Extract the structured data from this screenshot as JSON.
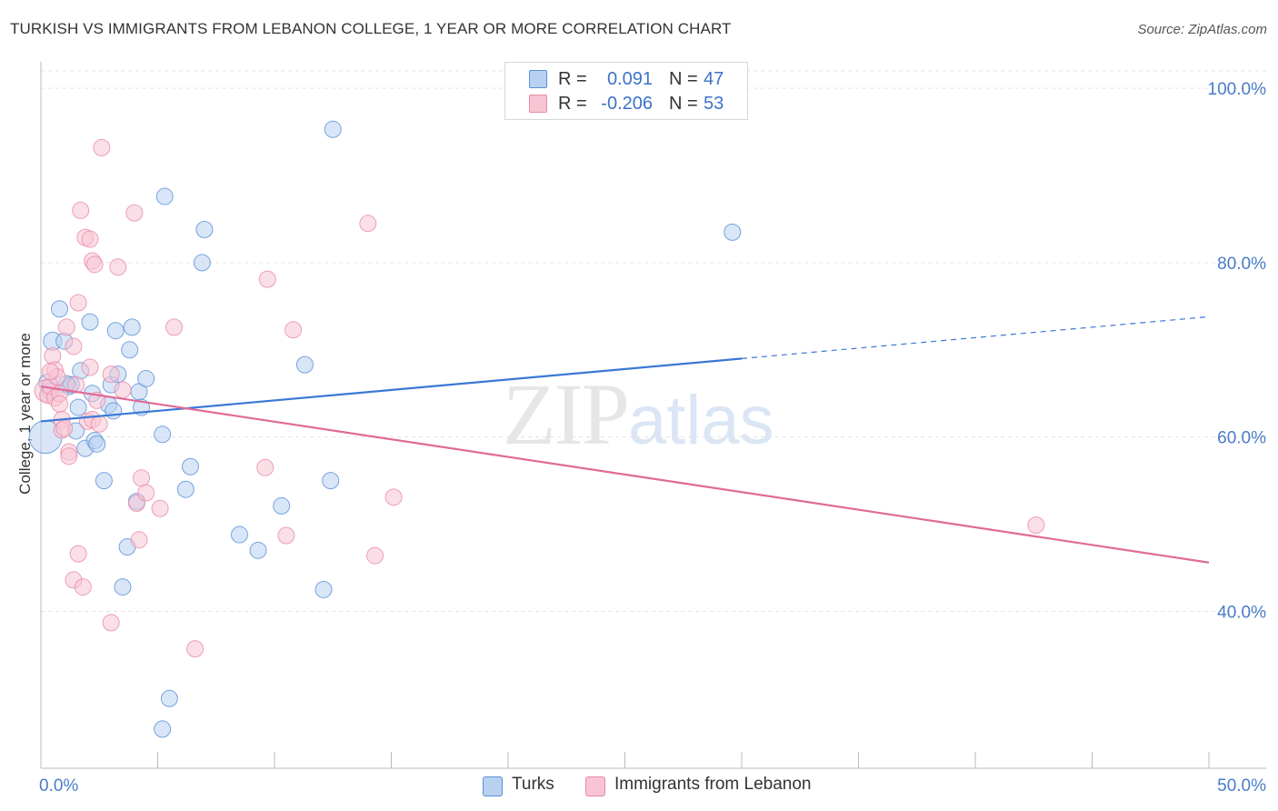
{
  "title": "TURKISH VS IMMIGRANTS FROM LEBANON COLLEGE, 1 YEAR OR MORE CORRELATION CHART",
  "source": "Source: ZipAtlas.com",
  "watermark": {
    "zip": "ZIP",
    "atlas": "atlas"
  },
  "colors": {
    "turks_fill": "#b8d1f0",
    "turks_stroke": "#5a8fd8",
    "turks_line": "#3b78d6",
    "lebanon_fill": "#f8c4d4",
    "lebanon_stroke": "#e88aa8",
    "lebanon_line": "#e06a98",
    "grid": "#e3e3e3"
  },
  "legend": {
    "rows": [
      {
        "r_label": "R =",
        "r_value": "0.091",
        "n_label": "N =",
        "n_value": "47"
      },
      {
        "r_label": "R =",
        "r_value": "-0.206",
        "n_label": "N =",
        "n_value": "53"
      }
    ]
  },
  "bottom_legend": {
    "turks": "Turks",
    "lebanon": "Immigrants from Lebanon"
  },
  "chart_data": {
    "type": "scatter",
    "ylabel": "College, 1 year or more",
    "xlabel": "",
    "xlim": [
      0,
      50
    ],
    "ylim": [
      22,
      102
    ],
    "x_tick_labels": [
      "0.0%",
      "50.0%"
    ],
    "y_tick_labels": [
      "100.0%",
      "80.0%",
      "60.0%",
      "40.0%"
    ],
    "y_ticks": [
      100,
      80,
      60,
      40
    ],
    "series": [
      {
        "name": "Turks",
        "trend": {
          "x0": 0,
          "y0": 61.8,
          "x1": 30,
          "y1": 69.0,
          "dash_x1": 50,
          "dash_y1": 73.8
        },
        "points": [
          [
            0.2,
            60.0,
            18
          ],
          [
            0.3,
            66.2,
            10
          ],
          [
            0.5,
            71.0,
            10
          ],
          [
            0.8,
            74.7,
            9
          ],
          [
            1.0,
            71.0,
            9
          ],
          [
            1.2,
            65.8,
            9
          ],
          [
            1.3,
            66.0,
            9
          ],
          [
            1.5,
            60.7,
            9
          ],
          [
            1.6,
            63.4,
            9
          ],
          [
            1.7,
            67.6,
            9
          ],
          [
            1.9,
            58.7,
            9
          ],
          [
            2.1,
            73.2,
            9
          ],
          [
            2.2,
            65.0,
            9
          ],
          [
            2.3,
            59.6,
            9
          ],
          [
            2.4,
            59.2,
            9
          ],
          [
            2.7,
            55.0,
            9
          ],
          [
            2.9,
            63.7,
            9
          ],
          [
            3.0,
            66.0,
            9
          ],
          [
            3.1,
            63.0,
            9
          ],
          [
            3.2,
            72.2,
            9
          ],
          [
            3.3,
            67.2,
            9
          ],
          [
            3.5,
            42.8,
            9
          ],
          [
            3.7,
            47.4,
            9
          ],
          [
            3.8,
            70.0,
            9
          ],
          [
            3.9,
            72.6,
            9
          ],
          [
            4.1,
            52.6,
            9
          ],
          [
            4.2,
            65.2,
            9
          ],
          [
            4.3,
            63.4,
            9
          ],
          [
            4.5,
            66.7,
            9
          ],
          [
            5.2,
            60.3,
            9
          ],
          [
            5.3,
            87.6,
            9
          ],
          [
            5.5,
            30.0,
            9
          ],
          [
            5.2,
            26.5,
            9
          ],
          [
            6.2,
            54.0,
            9
          ],
          [
            6.4,
            56.6,
            9
          ],
          [
            6.9,
            80.0,
            9
          ],
          [
            7.0,
            83.8,
            9
          ],
          [
            8.5,
            48.8,
            9
          ],
          [
            9.3,
            47.0,
            9
          ],
          [
            10.3,
            52.1,
            9
          ],
          [
            11.3,
            68.3,
            9
          ],
          [
            12.1,
            42.5,
            9
          ],
          [
            12.4,
            55.0,
            9
          ],
          [
            12.5,
            95.3,
            9
          ],
          [
            29.6,
            83.5,
            9
          ],
          [
            0.4,
            65.3,
            9
          ],
          [
            1.1,
            66.1,
            9
          ]
        ]
      },
      {
        "name": "Immigrants from Lebanon",
        "trend": {
          "x0": 0,
          "y0": 65.8,
          "x1": 50,
          "y1": 45.6
        },
        "points": [
          [
            0.2,
            65.3,
            12
          ],
          [
            0.3,
            64.8,
            9
          ],
          [
            0.4,
            65.8,
            9
          ],
          [
            0.5,
            69.3,
            9
          ],
          [
            0.6,
            67.7,
            9
          ],
          [
            0.6,
            64.5,
            9
          ],
          [
            0.7,
            66.9,
            9
          ],
          [
            0.8,
            65.0,
            9
          ],
          [
            0.9,
            62.0,
            9
          ],
          [
            0.9,
            60.8,
            9
          ],
          [
            1.0,
            61.0,
            9
          ],
          [
            1.1,
            72.6,
            9
          ],
          [
            1.2,
            58.3,
            9
          ],
          [
            1.2,
            57.8,
            9
          ],
          [
            1.4,
            70.4,
            9
          ],
          [
            1.4,
            43.6,
            9
          ],
          [
            1.6,
            46.6,
            9
          ],
          [
            1.6,
            75.4,
            9
          ],
          [
            1.7,
            86.0,
            9
          ],
          [
            1.8,
            42.8,
            9
          ],
          [
            1.9,
            82.9,
            9
          ],
          [
            2.0,
            61.8,
            9
          ],
          [
            2.1,
            68.0,
            9
          ],
          [
            2.1,
            82.7,
            9
          ],
          [
            2.2,
            80.2,
            9
          ],
          [
            2.2,
            62.0,
            9
          ],
          [
            2.3,
            79.8,
            9
          ],
          [
            2.5,
            61.5,
            9
          ],
          [
            2.6,
            93.2,
            9
          ],
          [
            3.0,
            38.7,
            9
          ],
          [
            3.0,
            67.2,
            9
          ],
          [
            3.3,
            79.5,
            9
          ],
          [
            3.5,
            65.4,
            9
          ],
          [
            4.0,
            85.7,
            9
          ],
          [
            4.1,
            52.4,
            9
          ],
          [
            4.2,
            48.2,
            9
          ],
          [
            4.3,
            55.3,
            9
          ],
          [
            4.5,
            53.6,
            9
          ],
          [
            5.1,
            51.8,
            9
          ],
          [
            5.7,
            72.6,
            9
          ],
          [
            6.6,
            35.7,
            9
          ],
          [
            9.6,
            56.5,
            9
          ],
          [
            9.7,
            78.1,
            9
          ],
          [
            10.5,
            48.7,
            9
          ],
          [
            10.8,
            72.3,
            9
          ],
          [
            14.0,
            84.5,
            9
          ],
          [
            14.3,
            46.4,
            9
          ],
          [
            15.1,
            53.1,
            9
          ],
          [
            42.6,
            49.9,
            9
          ],
          [
            0.4,
            67.5,
            9
          ],
          [
            0.8,
            63.8,
            9
          ],
          [
            1.5,
            66.0,
            9
          ],
          [
            2.4,
            64.2,
            9
          ]
        ]
      }
    ]
  }
}
